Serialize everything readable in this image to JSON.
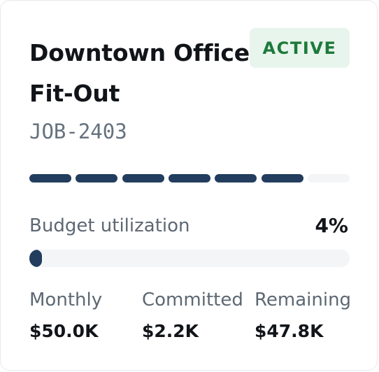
{
  "job": {
    "title": "Downtown Office Fit-Out",
    "status": "ACTIVE",
    "code": "JOB-2403"
  },
  "progress": {
    "total_stages": 7,
    "completed_stages": 6
  },
  "budget": {
    "label": "Budget utilization",
    "percent_text": "4%",
    "utilization": 0.04
  },
  "stats": [
    {
      "label": "Monthly",
      "value": "$50.0K"
    },
    {
      "label": "Committed",
      "value": "$2.2K"
    },
    {
      "label": "Remaining",
      "value": "$47.8K"
    }
  ],
  "colors": {
    "accent": "#223d5e",
    "track": "#f3f5f7",
    "badge_bg": "#e8f5ec",
    "badge_text": "#1d7a3b"
  }
}
